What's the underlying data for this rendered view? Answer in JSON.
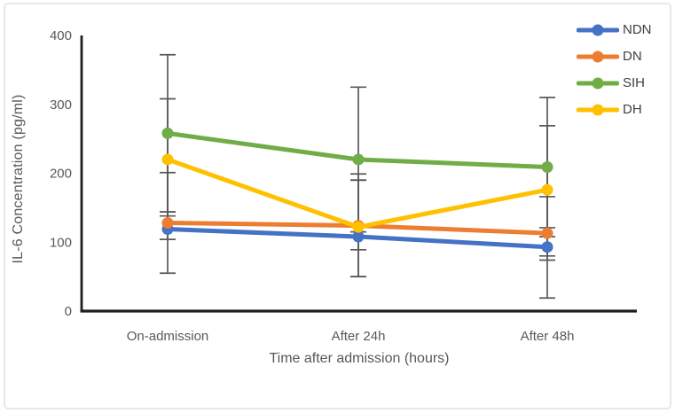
{
  "chart_data": {
    "type": "line",
    "title": "",
    "categories": [
      "On-admission",
      "After 24h",
      "After 48h"
    ],
    "series": [
      {
        "name": "NDN",
        "color": "#4472C4",
        "values": [
          119,
          108,
          93
        ],
        "error_ranges": [
          [
            55,
            201
          ],
          [
            50,
            190
          ],
          [
            19,
            166
          ]
        ]
      },
      {
        "name": "DN",
        "color": "#ED7D31",
        "values": [
          128,
          124,
          113
        ],
        "error_ranges": [
          [
            104,
            144
          ],
          [
            89,
            190
          ],
          [
            74,
            121
          ]
        ]
      },
      {
        "name": "SIH",
        "color": "#70AD47",
        "values": [
          258,
          220,
          209
        ],
        "error_ranges": [
          [
            144,
            372
          ],
          [
            115,
            325
          ],
          [
            108,
            310
          ]
        ]
      },
      {
        "name": "DH",
        "color": "#FFC000",
        "values": [
          220,
          122,
          176
        ],
        "error_ranges": [
          [
            138,
            308
          ],
          [
            50,
            199
          ],
          [
            80,
            269
          ]
        ]
      }
    ],
    "xlabel": "Time after admission (hours)",
    "ylabel": "IL-6 Concentration (pg/ml)",
    "ylim": [
      0,
      400
    ],
    "yticks": [
      "0",
      "100",
      "200",
      "300",
      "400"
    ],
    "grid": false,
    "legend_position": "top-right",
    "marker": "circle",
    "error_bars": true,
    "colors": {
      "axis": "#1f1f1f",
      "error_bar": "#595959",
      "labels": "#595959",
      "legend_text": "#404040",
      "frame_border": "#e8e8e8"
    }
  }
}
